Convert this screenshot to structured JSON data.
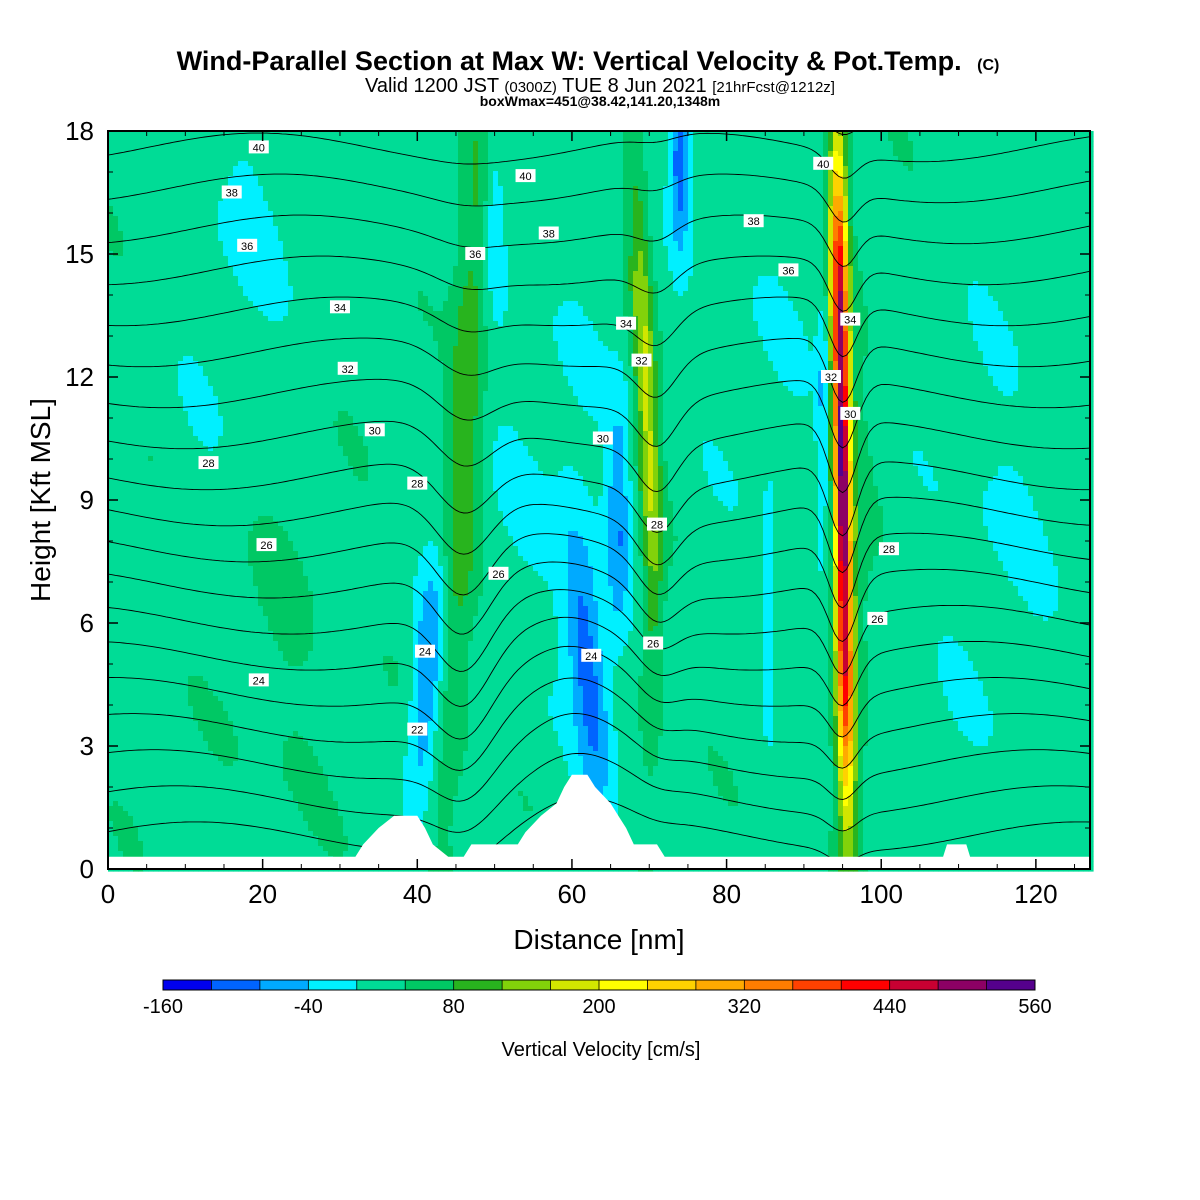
{
  "chart_data": {
    "type": "heatmap",
    "title": "Wind-Parallel Section at Max W: Vertical Velocity & Pot.Temp.",
    "title_mark": "(C)",
    "subtitle_prefix": "Valid 1200 JST",
    "subtitle_utc": "(0300Z)",
    "subtitle_date": "TUE 8 Jun 2021",
    "subtitle_fcst": "[21hrFcst@1212z]",
    "subtitle2": "boxWmax=451@38.42,141.20,1348m",
    "xlabel": "Distance [nm]",
    "ylabel": "Height [Kft MSL]",
    "xlim": [
      0,
      127
    ],
    "ylim": [
      0,
      18
    ],
    "xticks": [
      0,
      20,
      40,
      60,
      80,
      100,
      120
    ],
    "yticks": [
      0,
      3,
      6,
      9,
      12,
      15,
      18
    ],
    "colorbar": {
      "label": "Vertical Velocity [cm/s]",
      "min": -160,
      "max": 560,
      "step": 40,
      "tick_values": [
        -160,
        -40,
        80,
        200,
        320,
        440,
        560
      ],
      "tick_labels": [
        "-160",
        "-40",
        "80",
        "200",
        "320",
        "440",
        "560"
      ],
      "colors": [
        "#0000ee",
        "#0064ff",
        "#00aaff",
        "#00f0ff",
        "#00dc96",
        "#00c864",
        "#28b41e",
        "#82d20a",
        "#d2e600",
        "#ffff00",
        "#ffd200",
        "#ffaa00",
        "#ff7d00",
        "#ff4100",
        "#ff0000",
        "#c80032",
        "#8c0064",
        "#55008c"
      ]
    },
    "updrafts": [
      {
        "x": 47,
        "peak_w": 120
      },
      {
        "x": 70,
        "peak_w": 180
      },
      {
        "x": 95,
        "peak_w": 451
      }
    ],
    "downdrafts": [
      {
        "x": 42,
        "peak_w": -80
      },
      {
        "x": 63,
        "peak_w": -110
      },
      {
        "x": 74,
        "peak_w": -140
      }
    ],
    "terrain": [
      [
        0,
        0.3
      ],
      [
        32,
        0.3
      ],
      [
        33,
        0.6
      ],
      [
        35,
        1.0
      ],
      [
        37,
        1.3
      ],
      [
        40,
        1.3
      ],
      [
        41,
        1.0
      ],
      [
        42,
        0.6
      ],
      [
        44,
        0.3
      ],
      [
        46,
        0.3
      ],
      [
        47,
        0.6
      ],
      [
        53,
        0.6
      ],
      [
        54,
        0.9
      ],
      [
        56,
        1.3
      ],
      [
        58,
        1.6
      ],
      [
        59,
        2.0
      ],
      [
        60,
        2.3
      ],
      [
        62,
        2.3
      ],
      [
        63,
        2.0
      ],
      [
        65,
        1.6
      ],
      [
        66,
        1.3
      ],
      [
        67,
        1.0
      ],
      [
        68,
        0.6
      ],
      [
        71,
        0.6
      ],
      [
        72,
        0.3
      ],
      [
        108,
        0.3
      ],
      [
        108.5,
        0.6
      ],
      [
        111,
        0.6
      ],
      [
        111.5,
        0.3
      ],
      [
        127,
        0.3
      ]
    ],
    "theta_levels": [
      22,
      23,
      24,
      25,
      26,
      27,
      28,
      29,
      30,
      31,
      32,
      33,
      34,
      35,
      36,
      37,
      38,
      39,
      40,
      41
    ],
    "contour_labels": [
      {
        "text": "40",
        "x": 19.5,
        "y": 17.6
      },
      {
        "text": "38",
        "x": 16,
        "y": 16.5
      },
      {
        "text": "36",
        "x": 18,
        "y": 15.2
      },
      {
        "text": "34",
        "x": 30,
        "y": 13.7
      },
      {
        "text": "32",
        "x": 31,
        "y": 12.2
      },
      {
        "text": "30",
        "x": 34.5,
        "y": 10.7
      },
      {
        "text": "28",
        "x": 13,
        "y": 9.9
      },
      {
        "text": "28",
        "x": 40,
        "y": 9.4
      },
      {
        "text": "26",
        "x": 20.5,
        "y": 7.9
      },
      {
        "text": "24",
        "x": 19.5,
        "y": 4.6
      },
      {
        "text": "24",
        "x": 41,
        "y": 5.3
      },
      {
        "text": "22",
        "x": 40,
        "y": 3.4
      },
      {
        "text": "36",
        "x": 47.5,
        "y": 15.0
      },
      {
        "text": "40",
        "x": 54,
        "y": 16.9
      },
      {
        "text": "38",
        "x": 57,
        "y": 15.5
      },
      {
        "text": "34",
        "x": 67,
        "y": 13.3
      },
      {
        "text": "32",
        "x": 69,
        "y": 12.4
      },
      {
        "text": "30",
        "x": 64,
        "y": 10.5
      },
      {
        "text": "28",
        "x": 71,
        "y": 8.4
      },
      {
        "text": "26",
        "x": 50.5,
        "y": 7.2
      },
      {
        "text": "26",
        "x": 70.5,
        "y": 5.5
      },
      {
        "text": "24",
        "x": 62.5,
        "y": 5.2
      },
      {
        "text": "40",
        "x": 92.5,
        "y": 17.2
      },
      {
        "text": "38",
        "x": 83.5,
        "y": 15.8
      },
      {
        "text": "36",
        "x": 88,
        "y": 14.6
      },
      {
        "text": "34",
        "x": 96,
        "y": 13.4
      },
      {
        "text": "32",
        "x": 93.5,
        "y": 12.0
      },
      {
        "text": "30",
        "x": 96,
        "y": 11.1
      },
      {
        "text": "28",
        "x": 101,
        "y": 7.8
      },
      {
        "text": "26",
        "x": 99.5,
        "y": 6.1
      }
    ]
  }
}
